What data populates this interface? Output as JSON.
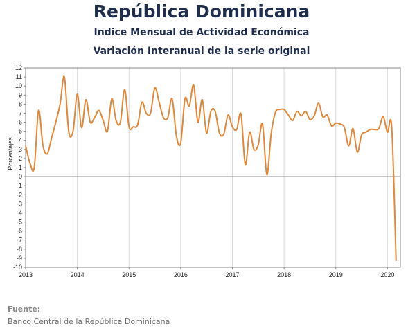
{
  "header": {
    "title": "República Dominicana",
    "subtitle1": "Indice Mensual de  Actividad Económica",
    "subtitle2": "Variación Interanual de la serie original"
  },
  "source": {
    "label": "Fuente:",
    "text": "Banco Central de la República Dominicana"
  },
  "colors": {
    "series": "#e0873a",
    "axis": "#888888",
    "grid": "#d9d9d9"
  },
  "chart_data": {
    "type": "line",
    "title": "",
    "xlabel": "",
    "ylabel": "Porcentajes",
    "ylim": [
      -10,
      12
    ],
    "yticks": [
      12,
      11,
      10,
      9,
      8,
      7,
      6,
      5,
      4,
      3,
      2,
      1,
      0,
      -1,
      -2,
      -3,
      -4,
      -5,
      -6,
      -7,
      -8,
      -9,
      -10
    ],
    "xticks": [
      "2013",
      "2014",
      "2015",
      "2016",
      "2017",
      "2018",
      "2019",
      "2020"
    ],
    "grid": "vertical",
    "legend": "none",
    "series": [
      {
        "color": "#e0873a",
        "x": [
          "2013-01",
          "2013-02",
          "2013-03",
          "2013-04",
          "2013-05",
          "2013-06",
          "2013-07",
          "2013-08",
          "2013-09",
          "2013-10",
          "2013-11",
          "2013-12",
          "2014-01",
          "2014-02",
          "2014-03",
          "2014-04",
          "2014-05",
          "2014-06",
          "2014-07",
          "2014-08",
          "2014-09",
          "2014-10",
          "2014-11",
          "2014-12",
          "2015-01",
          "2015-02",
          "2015-03",
          "2015-04",
          "2015-05",
          "2015-06",
          "2015-07",
          "2015-08",
          "2015-09",
          "2015-10",
          "2015-11",
          "2015-12",
          "2016-01",
          "2016-02",
          "2016-03",
          "2016-04",
          "2016-05",
          "2016-06",
          "2016-07",
          "2016-08",
          "2016-09",
          "2016-10",
          "2016-11",
          "2016-12",
          "2017-01",
          "2017-02",
          "2017-03",
          "2017-04",
          "2017-05",
          "2017-06",
          "2017-07",
          "2017-08",
          "2017-09",
          "2017-10",
          "2017-11",
          "2017-12",
          "2018-01",
          "2018-02",
          "2018-03",
          "2018-04",
          "2018-05",
          "2018-06",
          "2018-07",
          "2018-08",
          "2018-09",
          "2018-10",
          "2018-11",
          "2018-12",
          "2019-01",
          "2019-02",
          "2019-03",
          "2019-04",
          "2019-05",
          "2019-06",
          "2019-07",
          "2019-08",
          "2019-09",
          "2019-10",
          "2019-11",
          "2019-12",
          "2020-01",
          "2020-02",
          "2020-03"
        ],
        "values": [
          3.4,
          1.5,
          1.0,
          7.3,
          3.5,
          2.5,
          4.2,
          6.0,
          8.0,
          11.0,
          5.0,
          5.0,
          9.1,
          5.4,
          8.5,
          6.0,
          6.5,
          7.3,
          6.2,
          5.0,
          8.6,
          6.2,
          6.0,
          9.6,
          5.5,
          5.5,
          5.7,
          8.2,
          7.0,
          7.0,
          9.8,
          8.2,
          6.5,
          6.5,
          8.6,
          4.5,
          3.7,
          8.6,
          7.8,
          10.1,
          6.0,
          8.5,
          4.8,
          7.2,
          7.2,
          4.8,
          4.7,
          6.8,
          5.5,
          5.2,
          6.9,
          1.3,
          4.9,
          3.0,
          3.5,
          5.8,
          0.2,
          4.7,
          7.1,
          7.4,
          7.4,
          6.8,
          6.2,
          7.2,
          6.7,
          7.2,
          6.3,
          6.7,
          8.1,
          6.6,
          6.8,
          5.6,
          5.9,
          5.8,
          5.4,
          3.4,
          5.3,
          2.7,
          4.6,
          4.9,
          5.2,
          5.2,
          5.3,
          6.6,
          4.9,
          5.4,
          -9.3
        ]
      }
    ]
  }
}
